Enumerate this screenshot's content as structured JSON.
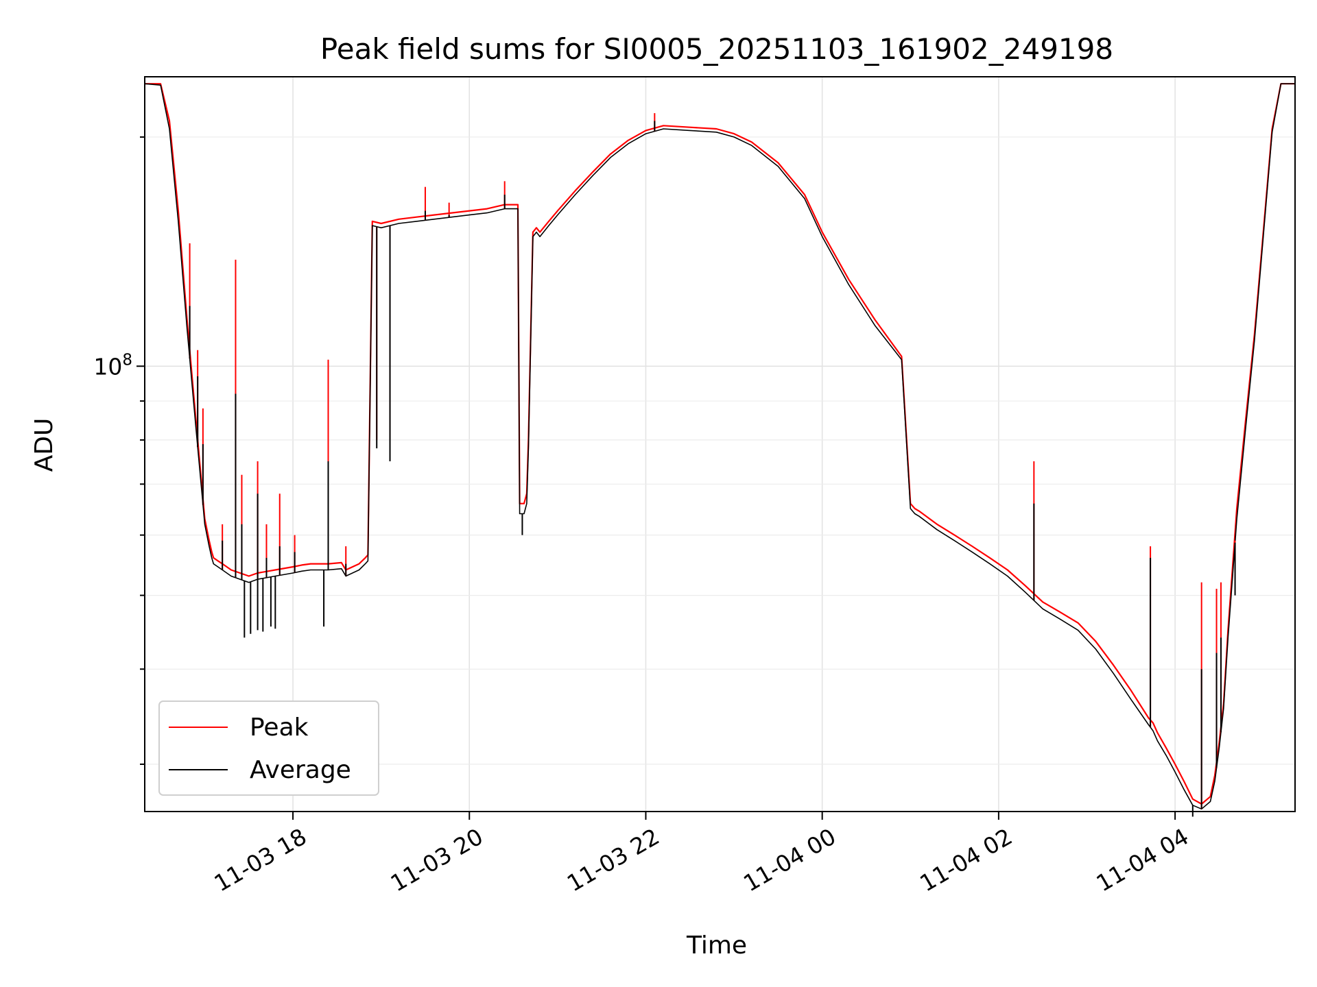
{
  "chart_data": {
    "type": "line",
    "title": "Peak field sums for SI0005_20251103_161902_249198",
    "xlabel": "Time",
    "ylabel": "ADU",
    "x_unit": "hours from 11-03 00:00",
    "xlim": [
      16.32,
      29.36
    ],
    "ylim": [
      26000000,
      240000000
    ],
    "yscale": "log",
    "grid": true,
    "legend_position": "lower-left",
    "x_ticks": [
      {
        "value": 18,
        "label": "11-03 18"
      },
      {
        "value": 20,
        "label": "11-03 20"
      },
      {
        "value": 22,
        "label": "11-03 22"
      },
      {
        "value": 24,
        "label": "11-04 00"
      },
      {
        "value": 26,
        "label": "11-04 02"
      },
      {
        "value": 28,
        "label": "11-04 04"
      }
    ],
    "y_ticks": [
      {
        "value": 100000000,
        "label_base": "10",
        "label_exp": "8"
      }
    ],
    "y_minor_ticks": [
      30000000,
      40000000,
      50000000,
      60000000,
      70000000,
      80000000,
      90000000,
      200000000
    ],
    "series": [
      {
        "name": "Peak",
        "color": "#ff0000",
        "x": [
          16.32,
          16.5,
          16.6,
          16.7,
          16.8,
          16.9,
          17.0,
          17.05,
          17.08,
          17.1,
          17.15,
          17.2,
          17.25,
          17.3,
          17.4,
          17.5,
          17.6,
          17.8,
          18.0,
          18.1,
          18.2,
          18.4,
          18.55,
          18.6,
          18.75,
          18.82,
          18.85,
          18.9,
          19.0,
          19.2,
          19.4,
          19.6,
          19.8,
          20.0,
          20.2,
          20.4,
          20.55,
          20.57,
          20.62,
          20.65,
          20.67,
          20.72,
          20.76,
          20.8,
          20.9,
          21.0,
          21.2,
          21.4,
          21.6,
          21.8,
          22.0,
          22.2,
          22.5,
          22.8,
          23.0,
          23.2,
          23.5,
          23.8,
          24.0,
          24.3,
          24.6,
          24.9,
          25.0,
          25.05,
          25.1,
          25.3,
          25.5,
          25.7,
          25.9,
          26.1,
          26.3,
          26.5,
          26.7,
          26.9,
          27.1,
          27.3,
          27.5,
          27.7,
          27.75,
          27.8,
          27.9,
          28.0,
          28.1,
          28.2,
          28.3,
          28.4,
          28.45,
          28.5,
          28.55,
          28.6,
          28.7,
          28.8,
          28.9,
          29.0,
          29.1,
          29.2,
          29.36
        ],
        "y": [
          235000000,
          235000000,
          210000000,
          160000000,
          115000000,
          85000000,
          63000000,
          59000000,
          57000000,
          56000000,
          55500000,
          55000000,
          54500000,
          54000000,
          53500000,
          53000000,
          53500000,
          54000000,
          54500000,
          54800000,
          55000000,
          55000000,
          55200000,
          54000000,
          55000000,
          56000000,
          56500000,
          155000000,
          154000000,
          156000000,
          157000000,
          158000000,
          159000000,
          160000000,
          161000000,
          163000000,
          163000000,
          66000000,
          66000000,
          68000000,
          80000000,
          150000000,
          152000000,
          150000000,
          155000000,
          160000000,
          170000000,
          180000000,
          190000000,
          198000000,
          204000000,
          207000000,
          206000000,
          205000000,
          202000000,
          197000000,
          185000000,
          168000000,
          150000000,
          130000000,
          115000000,
          103000000,
          66000000,
          65000000,
          64500000,
          62000000,
          60000000,
          58000000,
          56000000,
          54000000,
          51500000,
          49000000,
          47500000,
          46000000,
          43500000,
          40500000,
          37500000,
          34500000,
          34000000,
          33000000,
          31500000,
          30000000,
          28500000,
          27000000,
          26600000,
          27200000,
          29000000,
          32000000,
          36000000,
          45000000,
          65000000,
          85000000,
          110000000,
          150000000,
          205000000,
          235000000,
          235000000
        ]
      },
      {
        "name": "Average",
        "color": "#000000",
        "x": [
          16.32,
          16.5,
          16.6,
          16.7,
          16.8,
          16.9,
          17.0,
          17.05,
          17.08,
          17.1,
          17.15,
          17.2,
          17.25,
          17.3,
          17.4,
          17.5,
          17.6,
          17.8,
          18.0,
          18.1,
          18.2,
          18.4,
          18.55,
          18.6,
          18.75,
          18.82,
          18.85,
          18.9,
          19.0,
          19.2,
          19.4,
          19.6,
          19.8,
          20.0,
          20.2,
          20.4,
          20.55,
          20.57,
          20.62,
          20.65,
          20.67,
          20.72,
          20.76,
          20.8,
          20.9,
          21.0,
          21.2,
          21.4,
          21.6,
          21.8,
          22.0,
          22.2,
          22.5,
          22.8,
          23.0,
          23.2,
          23.5,
          23.8,
          24.0,
          24.3,
          24.6,
          24.9,
          25.0,
          25.05,
          25.1,
          25.3,
          25.5,
          25.7,
          25.9,
          26.1,
          26.3,
          26.5,
          26.7,
          26.9,
          27.1,
          27.3,
          27.5,
          27.7,
          27.75,
          27.8,
          27.9,
          28.0,
          28.1,
          28.2,
          28.3,
          28.4,
          28.45,
          28.5,
          28.55,
          28.6,
          28.7,
          28.8,
          28.9,
          29.0,
          29.1,
          29.2,
          29.36
        ],
        "y": [
          235000000,
          234000000,
          205000000,
          155000000,
          112000000,
          83000000,
          62000000,
          58000000,
          56000000,
          55000000,
          54500000,
          54000000,
          53500000,
          53000000,
          52500000,
          52000000,
          52500000,
          53000000,
          53500000,
          53800000,
          54000000,
          54000000,
          54200000,
          53000000,
          54000000,
          55000000,
          55500000,
          153000000,
          152000000,
          154000000,
          155000000,
          156000000,
          157000000,
          158000000,
          159000000,
          161000000,
          161000000,
          64000000,
          64000000,
          66000000,
          78000000,
          148000000,
          150000000,
          148000000,
          153000000,
          158000000,
          168000000,
          178000000,
          188000000,
          196000000,
          202000000,
          205000000,
          204000000,
          203000000,
          200000000,
          195000000,
          183000000,
          166000000,
          148000000,
          128000000,
          113000000,
          102000000,
          65000000,
          64000000,
          63500000,
          61000000,
          59000000,
          57000000,
          55000000,
          53000000,
          50500000,
          48000000,
          46500000,
          45000000,
          42500000,
          39500000,
          36500000,
          33800000,
          33200000,
          32200000,
          30800000,
          29300000,
          27800000,
          26500000,
          26200000,
          26800000,
          28500000,
          31500000,
          35500000,
          44000000,
          63000000,
          83000000,
          108000000,
          148000000,
          203000000,
          235000000,
          235000000
        ]
      }
    ],
    "spikes": [
      {
        "x": 16.83,
        "peak": 145000000,
        "avg": 120000000
      },
      {
        "x": 16.92,
        "peak": 105000000,
        "avg": 97000000
      },
      {
        "x": 16.98,
        "peak": 88000000,
        "avg": 79000000
      },
      {
        "x": 17.2,
        "peak": 62000000,
        "avg": 59000000
      },
      {
        "x": 17.35,
        "peak": 138000000,
        "avg": 92000000
      },
      {
        "x": 17.42,
        "peak": 72000000,
        "avg": 62000000
      },
      {
        "x": 17.6,
        "peak": 75000000,
        "avg": 68000000
      },
      {
        "x": 17.7,
        "peak": 62000000,
        "avg": 56000000
      },
      {
        "x": 17.85,
        "peak": 68000000,
        "avg": 58000000
      },
      {
        "x": 18.02,
        "peak": 60000000,
        "avg": 57000000
      },
      {
        "x": 18.4,
        "peak": 102000000,
        "avg": 75000000
      },
      {
        "x": 18.6,
        "peak": 58000000,
        "avg": 55000000
      },
      {
        "x": 18.95,
        "peak": 80000000,
        "avg": 78000000
      },
      {
        "x": 19.1,
        "peak": 80000000,
        "avg": 75000000
      },
      {
        "x": 19.5,
        "peak": 172000000,
        "avg": 160000000
      },
      {
        "x": 19.77,
        "peak": 164000000,
        "avg": 158000000
      },
      {
        "x": 20.4,
        "peak": 175000000,
        "avg": 168000000
      },
      {
        "x": 22.1,
        "peak": 215000000,
        "avg": 210000000
      },
      {
        "x": 26.4,
        "peak": 75000000,
        "avg": 66000000
      },
      {
        "x": 27.72,
        "peak": 58000000,
        "avg": 56000000
      },
      {
        "x": 28.3,
        "peak": 52000000,
        "avg": 40000000
      },
      {
        "x": 28.47,
        "peak": 51000000,
        "avg": 42000000
      },
      {
        "x": 28.52,
        "peak": 52000000,
        "avg": 44000000
      },
      {
        "x": 28.68,
        "peak": 59000000,
        "avg": 50000000
      }
    ],
    "dips": [
      {
        "x": 17.45,
        "avg": 44000000
      },
      {
        "x": 17.52,
        "avg": 44500000
      },
      {
        "x": 17.6,
        "avg": 45000000
      },
      {
        "x": 17.66,
        "avg": 44800000
      },
      {
        "x": 17.75,
        "avg": 45500000
      },
      {
        "x": 17.8,
        "avg": 45200000
      },
      {
        "x": 18.35,
        "avg": 45500000
      },
      {
        "x": 20.6,
        "avg": 60000000
      },
      {
        "x": 28.2,
        "avg": 25600000
      }
    ]
  }
}
